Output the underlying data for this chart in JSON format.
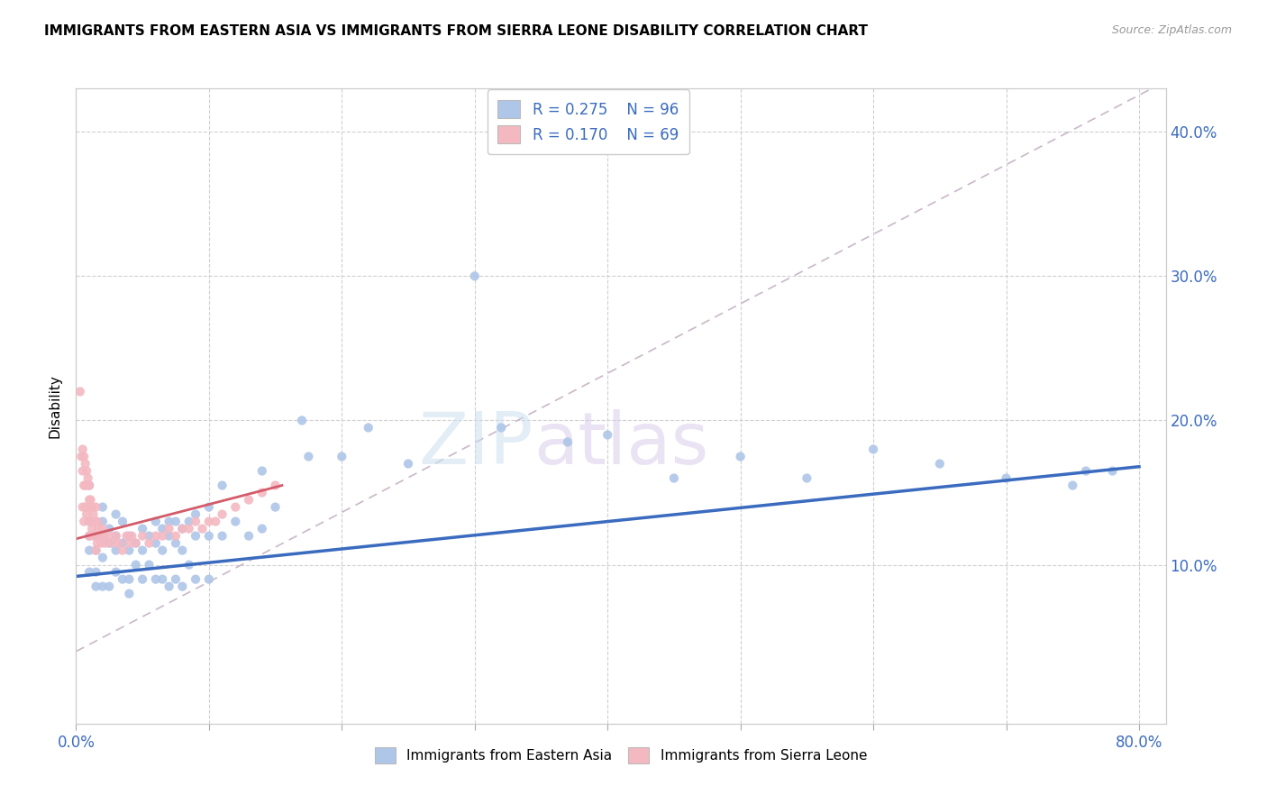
{
  "title": "IMMIGRANTS FROM EASTERN ASIA VS IMMIGRANTS FROM SIERRA LEONE DISABILITY CORRELATION CHART",
  "source": "Source: ZipAtlas.com",
  "ylabel": "Disability",
  "xlim": [
    0.0,
    0.82
  ],
  "ylim": [
    -0.01,
    0.43
  ],
  "legend1_color": "#aec6e8",
  "legend2_color": "#f4b8c1",
  "scatter1_color": "#aec6e8",
  "scatter2_color": "#f4b8c1",
  "line1_color": "#3a6bbf",
  "line2_color": "#d45b6a",
  "trendline_dashed_color": "#c8b8c8",
  "eastern_asia_x": [
    0.01,
    0.01,
    0.01,
    0.01,
    0.01,
    0.015,
    0.015,
    0.015,
    0.015,
    0.015,
    0.02,
    0.02,
    0.02,
    0.02,
    0.02,
    0.025,
    0.025,
    0.025,
    0.03,
    0.03,
    0.03,
    0.03,
    0.035,
    0.035,
    0.035,
    0.04,
    0.04,
    0.04,
    0.04,
    0.045,
    0.045,
    0.05,
    0.05,
    0.05,
    0.055,
    0.055,
    0.06,
    0.06,
    0.06,
    0.065,
    0.065,
    0.065,
    0.07,
    0.07,
    0.07,
    0.075,
    0.075,
    0.075,
    0.08,
    0.08,
    0.08,
    0.085,
    0.085,
    0.09,
    0.09,
    0.09,
    0.1,
    0.1,
    0.1,
    0.11,
    0.11,
    0.12,
    0.13,
    0.14,
    0.14,
    0.15,
    0.17,
    0.175,
    0.2,
    0.22,
    0.25,
    0.3,
    0.32,
    0.37,
    0.4,
    0.45,
    0.5,
    0.55,
    0.6,
    0.65,
    0.7,
    0.75,
    0.76,
    0.78
  ],
  "eastern_asia_y": [
    0.155,
    0.13,
    0.12,
    0.11,
    0.095,
    0.13,
    0.12,
    0.11,
    0.095,
    0.085,
    0.14,
    0.13,
    0.12,
    0.105,
    0.085,
    0.125,
    0.115,
    0.085,
    0.135,
    0.12,
    0.11,
    0.095,
    0.13,
    0.115,
    0.09,
    0.12,
    0.11,
    0.09,
    0.08,
    0.115,
    0.1,
    0.125,
    0.11,
    0.09,
    0.12,
    0.1,
    0.13,
    0.115,
    0.09,
    0.125,
    0.11,
    0.09,
    0.13,
    0.12,
    0.085,
    0.13,
    0.115,
    0.09,
    0.125,
    0.11,
    0.085,
    0.13,
    0.1,
    0.135,
    0.12,
    0.09,
    0.14,
    0.12,
    0.09,
    0.155,
    0.12,
    0.13,
    0.12,
    0.165,
    0.125,
    0.14,
    0.2,
    0.175,
    0.175,
    0.195,
    0.17,
    0.3,
    0.195,
    0.185,
    0.19,
    0.16,
    0.175,
    0.16,
    0.18,
    0.17,
    0.16,
    0.155,
    0.165,
    0.165
  ],
  "sierra_leone_x": [
    0.003,
    0.004,
    0.005,
    0.005,
    0.005,
    0.006,
    0.006,
    0.006,
    0.007,
    0.007,
    0.007,
    0.008,
    0.008,
    0.008,
    0.009,
    0.009,
    0.01,
    0.01,
    0.01,
    0.011,
    0.011,
    0.012,
    0.012,
    0.013,
    0.013,
    0.014,
    0.015,
    0.015,
    0.016,
    0.016,
    0.017,
    0.018,
    0.019,
    0.02,
    0.021,
    0.022,
    0.025,
    0.027,
    0.03,
    0.032,
    0.035,
    0.038,
    0.04,
    0.042,
    0.045,
    0.05,
    0.055,
    0.06,
    0.065,
    0.07,
    0.075,
    0.08,
    0.085,
    0.09,
    0.095,
    0.1,
    0.105,
    0.11,
    0.12,
    0.13,
    0.14,
    0.15
  ],
  "sierra_leone_y": [
    0.22,
    0.175,
    0.18,
    0.165,
    0.14,
    0.175,
    0.155,
    0.13,
    0.17,
    0.155,
    0.14,
    0.165,
    0.155,
    0.135,
    0.16,
    0.14,
    0.155,
    0.145,
    0.12,
    0.145,
    0.13,
    0.14,
    0.125,
    0.135,
    0.12,
    0.13,
    0.14,
    0.11,
    0.13,
    0.115,
    0.125,
    0.12,
    0.115,
    0.125,
    0.12,
    0.115,
    0.12,
    0.115,
    0.12,
    0.115,
    0.11,
    0.12,
    0.115,
    0.12,
    0.115,
    0.12,
    0.115,
    0.12,
    0.12,
    0.125,
    0.12,
    0.125,
    0.125,
    0.13,
    0.125,
    0.13,
    0.13,
    0.135,
    0.14,
    0.145,
    0.15,
    0.155
  ]
}
